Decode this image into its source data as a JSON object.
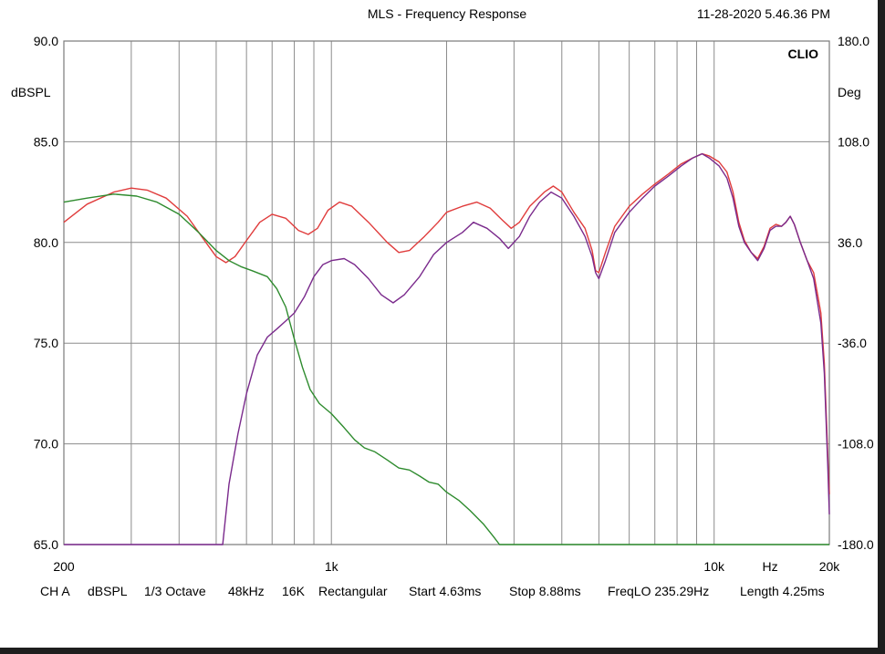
{
  "header": {
    "title": "MLS - Frequency Response",
    "timestamp": "11-28-2020 5.46.36 PM",
    "brand": "CLIO"
  },
  "status": {
    "channel": "CH A",
    "unit": "dBSPL",
    "smoothing": "1/3 Octave",
    "sample_rate": "48kHz",
    "size": "16K",
    "window": "Rectangular",
    "start": "Start 4.63ms",
    "stop": "Stop 8.88ms",
    "freq_lo": "FreqLO 235.29Hz",
    "length": "Length 4.25ms"
  },
  "colors": {
    "grid": "#8c8c8c",
    "red": "#e03c3c",
    "purple": "#7a2a8c",
    "green": "#2e8b2e"
  },
  "chart_data": {
    "type": "line",
    "title": "MLS - Frequency Response",
    "xscale": "log",
    "xlim": [
      200,
      20000
    ],
    "ylim": [
      65,
      90
    ],
    "ylim_right": [
      -180,
      180
    ],
    "ylabel": "dBSPL",
    "ylabel_right": "Deg",
    "xlabel": "Hz",
    "grid": true,
    "yticks": [
      {
        "v": 90,
        "label": "90.0"
      },
      {
        "v": 85,
        "label": "85.0"
      },
      {
        "v": 80,
        "label": "80.0"
      },
      {
        "v": 75,
        "label": "75.0"
      },
      {
        "v": 70,
        "label": "70.0"
      },
      {
        "v": 65,
        "label": "65.0"
      }
    ],
    "yticks_right": [
      {
        "v": 90,
        "label": "180.0"
      },
      {
        "v": 85,
        "label": "108.0"
      },
      {
        "v": 80,
        "label": "36.0"
      },
      {
        "v": 75,
        "label": "-36.0"
      },
      {
        "v": 70,
        "label": "-108.0"
      },
      {
        "v": 65,
        "label": "-180.0"
      }
    ],
    "xtick_labels": [
      {
        "f": 200,
        "label": "200"
      },
      {
        "f": 1000,
        "label": "1k"
      },
      {
        "f": 10000,
        "label": "10k"
      },
      {
        "f": 14000,
        "label": "Hz"
      },
      {
        "f": 20000,
        "label": "20k"
      }
    ],
    "series": [
      {
        "color_key": "red",
        "points": [
          [
            200,
            81.0
          ],
          [
            230,
            81.9
          ],
          [
            270,
            82.5
          ],
          [
            300,
            82.7
          ],
          [
            330,
            82.6
          ],
          [
            370,
            82.2
          ],
          [
            420,
            81.3
          ],
          [
            470,
            80.0
          ],
          [
            500,
            79.3
          ],
          [
            530,
            79.0
          ],
          [
            560,
            79.3
          ],
          [
            600,
            80.1
          ],
          [
            650,
            81.0
          ],
          [
            700,
            81.4
          ],
          [
            760,
            81.2
          ],
          [
            820,
            80.6
          ],
          [
            870,
            80.4
          ],
          [
            920,
            80.7
          ],
          [
            980,
            81.6
          ],
          [
            1050,
            82.0
          ],
          [
            1130,
            81.8
          ],
          [
            1250,
            81.0
          ],
          [
            1400,
            80.0
          ],
          [
            1500,
            79.5
          ],
          [
            1600,
            79.6
          ],
          [
            1750,
            80.3
          ],
          [
            1900,
            81.0
          ],
          [
            2000,
            81.5
          ],
          [
            2200,
            81.8
          ],
          [
            2400,
            82.0
          ],
          [
            2600,
            81.7
          ],
          [
            2800,
            81.1
          ],
          [
            2950,
            80.7
          ],
          [
            3100,
            81.0
          ],
          [
            3300,
            81.8
          ],
          [
            3600,
            82.5
          ],
          [
            3800,
            82.8
          ],
          [
            4000,
            82.5
          ],
          [
            4300,
            81.5
          ],
          [
            4600,
            80.7
          ],
          [
            4800,
            79.6
          ],
          [
            4900,
            78.6
          ],
          [
            5000,
            78.5
          ],
          [
            5200,
            79.5
          ],
          [
            5500,
            80.8
          ],
          [
            6000,
            81.8
          ],
          [
            6500,
            82.4
          ],
          [
            7000,
            82.9
          ],
          [
            7600,
            83.4
          ],
          [
            8200,
            83.9
          ],
          [
            8800,
            84.2
          ],
          [
            9300,
            84.4
          ],
          [
            9700,
            84.3
          ],
          [
            10300,
            84.0
          ],
          [
            10800,
            83.5
          ],
          [
            11200,
            82.5
          ],
          [
            11600,
            81.0
          ],
          [
            12000,
            80.1
          ],
          [
            12500,
            79.5
          ],
          [
            13000,
            79.2
          ],
          [
            13500,
            79.8
          ],
          [
            14000,
            80.7
          ],
          [
            14500,
            80.9
          ],
          [
            15000,
            80.8
          ],
          [
            15400,
            81.0
          ],
          [
            15800,
            81.3
          ],
          [
            16200,
            80.9
          ],
          [
            16800,
            80.0
          ],
          [
            17500,
            79.1
          ],
          [
            18200,
            78.5
          ],
          [
            19000,
            76.5
          ],
          [
            19400,
            74.0
          ],
          [
            19800,
            69.5
          ],
          [
            20000,
            67.5
          ]
        ]
      },
      {
        "color_key": "purple",
        "points": [
          [
            200,
            65.0
          ],
          [
            520,
            65.0
          ],
          [
            540,
            68.0
          ],
          [
            570,
            70.5
          ],
          [
            600,
            72.5
          ],
          [
            640,
            74.4
          ],
          [
            680,
            75.3
          ],
          [
            720,
            75.7
          ],
          [
            760,
            76.1
          ],
          [
            800,
            76.5
          ],
          [
            850,
            77.3
          ],
          [
            900,
            78.3
          ],
          [
            950,
            78.9
          ],
          [
            1000,
            79.1
          ],
          [
            1080,
            79.2
          ],
          [
            1150,
            78.9
          ],
          [
            1250,
            78.2
          ],
          [
            1350,
            77.4
          ],
          [
            1450,
            77.0
          ],
          [
            1550,
            77.4
          ],
          [
            1700,
            78.3
          ],
          [
            1850,
            79.4
          ],
          [
            2000,
            80.0
          ],
          [
            2200,
            80.5
          ],
          [
            2350,
            81.0
          ],
          [
            2550,
            80.7
          ],
          [
            2750,
            80.2
          ],
          [
            2900,
            79.7
          ],
          [
            3100,
            80.3
          ],
          [
            3300,
            81.3
          ],
          [
            3500,
            82.0
          ],
          [
            3750,
            82.5
          ],
          [
            4000,
            82.2
          ],
          [
            4300,
            81.3
          ],
          [
            4600,
            80.3
          ],
          [
            4800,
            79.3
          ],
          [
            4900,
            78.5
          ],
          [
            5000,
            78.2
          ],
          [
            5200,
            79.1
          ],
          [
            5500,
            80.5
          ],
          [
            6000,
            81.5
          ],
          [
            6500,
            82.2
          ],
          [
            7000,
            82.8
          ],
          [
            7600,
            83.3
          ],
          [
            8200,
            83.8
          ],
          [
            8800,
            84.2
          ],
          [
            9300,
            84.4
          ],
          [
            9700,
            84.2
          ],
          [
            10300,
            83.8
          ],
          [
            10800,
            83.2
          ],
          [
            11200,
            82.2
          ],
          [
            11600,
            80.8
          ],
          [
            12000,
            80.0
          ],
          [
            12500,
            79.5
          ],
          [
            13000,
            79.1
          ],
          [
            13500,
            79.7
          ],
          [
            14000,
            80.6
          ],
          [
            14500,
            80.8
          ],
          [
            15000,
            80.8
          ],
          [
            15400,
            81.0
          ],
          [
            15800,
            81.3
          ],
          [
            16200,
            80.9
          ],
          [
            16800,
            80.0
          ],
          [
            17500,
            79.1
          ],
          [
            18200,
            78.2
          ],
          [
            19000,
            76.0
          ],
          [
            19400,
            73.5
          ],
          [
            19800,
            69.0
          ],
          [
            20000,
            66.5
          ]
        ]
      },
      {
        "color_key": "green",
        "points": [
          [
            200,
            82.0
          ],
          [
            230,
            82.2
          ],
          [
            270,
            82.4
          ],
          [
            310,
            82.3
          ],
          [
            350,
            82.0
          ],
          [
            400,
            81.4
          ],
          [
            450,
            80.5
          ],
          [
            500,
            79.6
          ],
          [
            540,
            79.1
          ],
          [
            580,
            78.8
          ],
          [
            620,
            78.6
          ],
          [
            680,
            78.3
          ],
          [
            720,
            77.7
          ],
          [
            760,
            76.8
          ],
          [
            800,
            75.2
          ],
          [
            840,
            73.8
          ],
          [
            880,
            72.7
          ],
          [
            930,
            72.0
          ],
          [
            1000,
            71.5
          ],
          [
            1080,
            70.8
          ],
          [
            1150,
            70.2
          ],
          [
            1220,
            69.8
          ],
          [
            1300,
            69.6
          ],
          [
            1400,
            69.2
          ],
          [
            1500,
            68.8
          ],
          [
            1600,
            68.7
          ],
          [
            1700,
            68.4
          ],
          [
            1800,
            68.1
          ],
          [
            1900,
            68.0
          ],
          [
            2000,
            67.6
          ],
          [
            2150,
            67.2
          ],
          [
            2300,
            66.7
          ],
          [
            2500,
            66.0
          ],
          [
            2650,
            65.4
          ],
          [
            2750,
            65.0
          ],
          [
            20000,
            65.0
          ]
        ]
      }
    ]
  }
}
